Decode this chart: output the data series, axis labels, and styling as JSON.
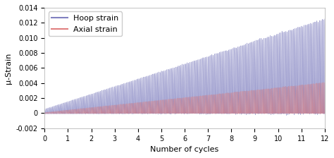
{
  "title": "",
  "xlabel": "Number of cycles",
  "ylabel": "μ-Strain",
  "xlim": [
    0,
    12
  ],
  "ylim": [
    -0.002,
    0.014
  ],
  "xticks": [
    0,
    1,
    2,
    3,
    4,
    5,
    6,
    7,
    8,
    9,
    10,
    11,
    12
  ],
  "yticks": [
    -0.002,
    0,
    0.002,
    0.004,
    0.006,
    0.008,
    0.01,
    0.012,
    0.014
  ],
  "hoop_color": "#8080c0",
  "axial_color": "#e08080",
  "hoop_label": "Hoop strain",
  "axial_label": "Axial strain",
  "n_cycles": 12,
  "oscillations_per_cycle": 18,
  "background_color": "#ffffff",
  "legend_fontsize": 8,
  "axis_fontsize": 8,
  "tick_fontsize": 7
}
